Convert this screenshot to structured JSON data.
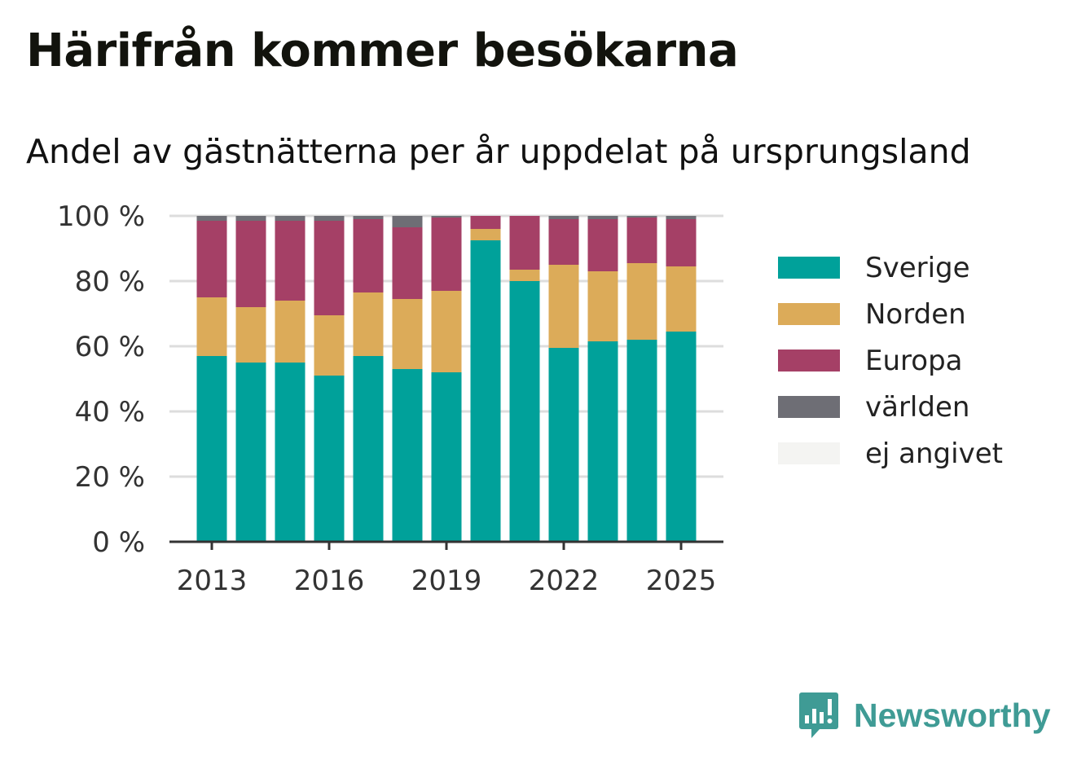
{
  "header": {
    "title": "Härifrån kommer besökarna",
    "subtitle": "Andel av gästnätterna per år uppdelat på ursprungsland"
  },
  "chart_data": {
    "type": "bar",
    "stacked": true,
    "title": "Härifrån kommer besökarna",
    "subtitle": "Andel av gästnätterna per år uppdelat på ursprungsland",
    "xlabel": "",
    "ylabel": "",
    "categories": [
      "2013",
      "2014",
      "2015",
      "2016",
      "2017",
      "2018",
      "2019",
      "2020",
      "2021",
      "2022",
      "2023",
      "2024",
      "2025"
    ],
    "x_tick_labels": [
      "2013",
      "2016",
      "2019",
      "2022",
      "2025"
    ],
    "y_tick_labels": [
      "0 %",
      "20 %",
      "40 %",
      "60 %",
      "80 %",
      "100 %"
    ],
    "ylim": [
      0,
      100
    ],
    "grid": true,
    "legend_position": "right",
    "series": [
      {
        "name": "Sverige",
        "color": "#00a19a",
        "values": [
          57,
          55,
          55,
          51,
          57,
          53,
          52,
          92.5,
          80,
          59.5,
          61.5,
          62,
          64.5
        ]
      },
      {
        "name": "Norden",
        "color": "#dcab59",
        "values": [
          18,
          17,
          19,
          18.5,
          19.5,
          21.5,
          25,
          3.5,
          3.5,
          25.5,
          21.5,
          23.5,
          20
        ]
      },
      {
        "name": "Europa",
        "color": "#a54066",
        "values": [
          23.5,
          26.5,
          24.5,
          29,
          22.5,
          22,
          22.5,
          4,
          16.5,
          14,
          16,
          14,
          14.5
        ]
      },
      {
        "name": "världen",
        "color": "#6e6e75",
        "values": [
          1.5,
          1.5,
          1.5,
          1.5,
          1,
          3.5,
          0.5,
          0,
          0,
          1,
          1,
          0.5,
          1
        ]
      },
      {
        "name": "ej angivet",
        "color": "#f4f4f2",
        "values": [
          0,
          0,
          0,
          0,
          0,
          0,
          0,
          0,
          0,
          0,
          0,
          0,
          0
        ]
      }
    ]
  },
  "footer": {
    "brand": "Newsworthy",
    "brand_color": "#3f9b95",
    "brand_icon": "chart-speech-bubble-icon"
  }
}
